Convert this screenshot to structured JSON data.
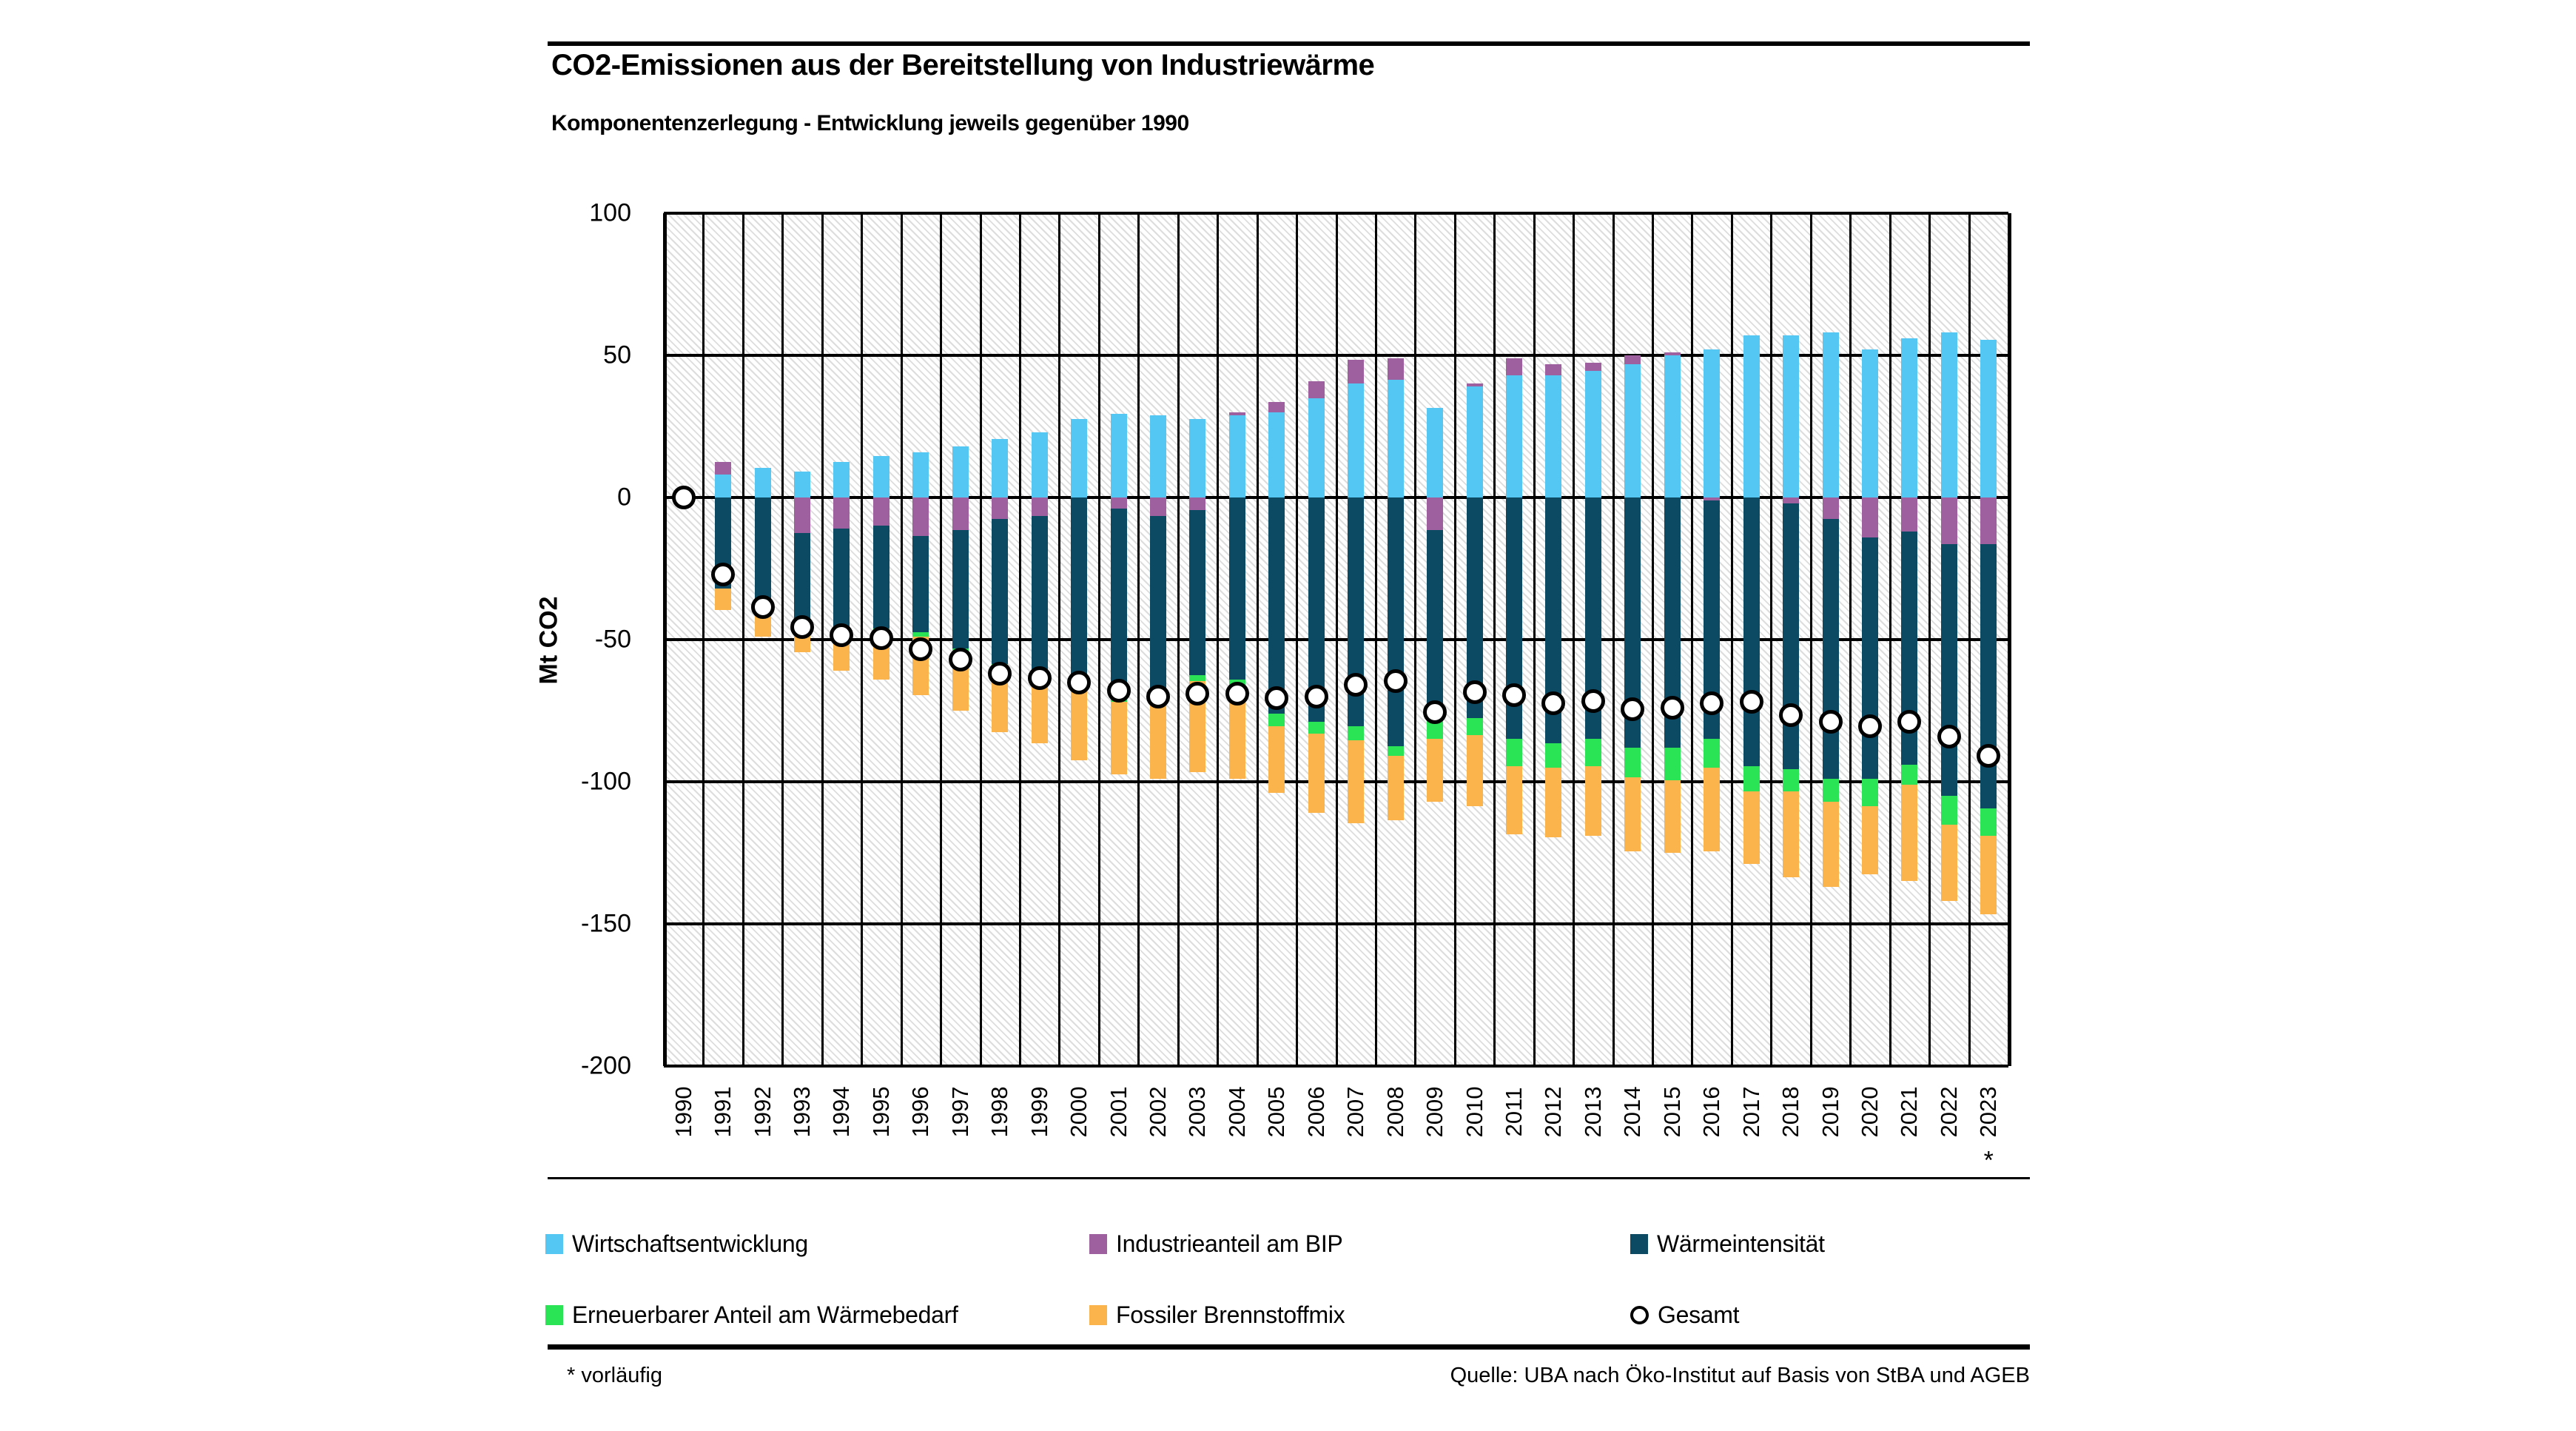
{
  "chart_data": {
    "type": "bar",
    "stacked": true,
    "title": "CO2-Emissionen aus der Bereitstellung von Industriewärme",
    "subtitle": "Komponentenzerlegung - Entwicklung jeweils gegenüber 1990",
    "ylabel": "Mt CO2",
    "unit": "Mt CO2",
    "ylim": [
      -200,
      100
    ],
    "yticks": [
      100,
      50,
      0,
      -50,
      -100,
      -150,
      -200
    ],
    "grid": "black gridlines, hatched plot background",
    "legend_position": "bottom, two rows",
    "categories": [
      1990,
      1991,
      1992,
      1993,
      1994,
      1995,
      1996,
      1997,
      1998,
      1999,
      2000,
      2001,
      2002,
      2003,
      2004,
      2005,
      2006,
      2007,
      2008,
      2009,
      2010,
      2011,
      2012,
      2013,
      2014,
      2015,
      2016,
      2017,
      2018,
      2019,
      2020,
      2021,
      2022,
      2023
    ],
    "last_category_note": "*",
    "series": [
      {
        "name": "Wirtschaftsentwicklung",
        "color": "#54C7F2",
        "values": [
          0,
          8,
          10.5,
          9,
          12.5,
          14.5,
          16,
          18,
          20.5,
          23,
          27.5,
          29.5,
          29,
          27.5,
          29,
          30,
          35,
          40,
          41.5,
          31.5,
          39,
          43,
          43,
          44.5,
          47,
          50,
          52,
          57,
          57,
          58,
          52,
          56,
          58,
          55.5
        ]
      },
      {
        "name": "Industrieanteil am BIP",
        "color": "#9F60A0",
        "values": [
          0,
          4.5,
          0,
          -12.5,
          -11,
          -10,
          -13.5,
          -11.5,
          -7.5,
          -6.5,
          0,
          -4,
          -6.5,
          -4.5,
          1,
          3.5,
          6,
          8.5,
          7.5,
          -11.5,
          1,
          6,
          4,
          3,
          3,
          1,
          -1,
          0,
          -2,
          -7.5,
          -14,
          -12,
          -16.5,
          -16.5
        ]
      },
      {
        "name": "Wärmeintensität",
        "color": "#0C4A63",
        "values": [
          0,
          -32,
          -41,
          -31,
          -38.5,
          -36,
          -34,
          -41.5,
          -51,
          -55.5,
          -66.5,
          -66,
          -64.5,
          -58,
          -64,
          -76,
          -79,
          -80.5,
          -87.5,
          -67,
          -77.5,
          -85,
          -86.5,
          -85,
          -88,
          -88,
          -84,
          -94.5,
          -93.5,
          -91.5,
          -85,
          -82,
          -88.5,
          -93
        ]
      },
      {
        "name": "Erneuerbarer Anteil am Wärmebedarf",
        "color": "#2BE456",
        "values": [
          0,
          0,
          0,
          -0.5,
          -0.5,
          -1,
          -1.5,
          -1.5,
          -1.5,
          -1,
          -1,
          -2,
          -2,
          -2,
          -3.5,
          -4.5,
          -4,
          -5,
          -3.5,
          -6.5,
          -6,
          -9.5,
          -8.5,
          -9.5,
          -10.5,
          -11.5,
          -10,
          -9,
          -8,
          -8,
          -9.5,
          -7,
          -10,
          -9.5
        ]
      },
      {
        "name": "Fossiler Brennstoffmix",
        "color": "#FBB44C",
        "values": [
          0,
          -7.5,
          -8,
          -10.5,
          -11,
          -17,
          -20.5,
          -20.5,
          -22.5,
          -23.5,
          -25,
          -25.5,
          -26,
          -32,
          -31.5,
          -23.5,
          -28,
          -29,
          -22.5,
          -22,
          -25,
          -24,
          -24.5,
          -24.5,
          -26,
          -25.5,
          -29.5,
          -25.5,
          -30,
          -30,
          -24,
          -34,
          -27,
          -27.5
        ]
      },
      {
        "name": "Gesamt",
        "marker": "circle",
        "color": "#FFFFFF",
        "border_color": "#000000",
        "values": [
          0,
          -27,
          -38.5,
          -45.5,
          -48.5,
          -49.5,
          -53.5,
          -57,
          -62,
          -63.5,
          -65,
          -68,
          -70,
          -69,
          -69,
          -70.5,
          -70,
          -66,
          -64.5,
          -75.5,
          -68.5,
          -69.5,
          -72.5,
          -71.5,
          -74.5,
          -74,
          -72.5,
          -72,
          -76.5,
          -79,
          -80.5,
          -79,
          -84,
          -91
        ]
      }
    ]
  },
  "footer": {
    "footnote": "* vorläufig",
    "source": "Quelle: UBA nach Öko-Institut auf Basis von StBA und AGEB"
  }
}
